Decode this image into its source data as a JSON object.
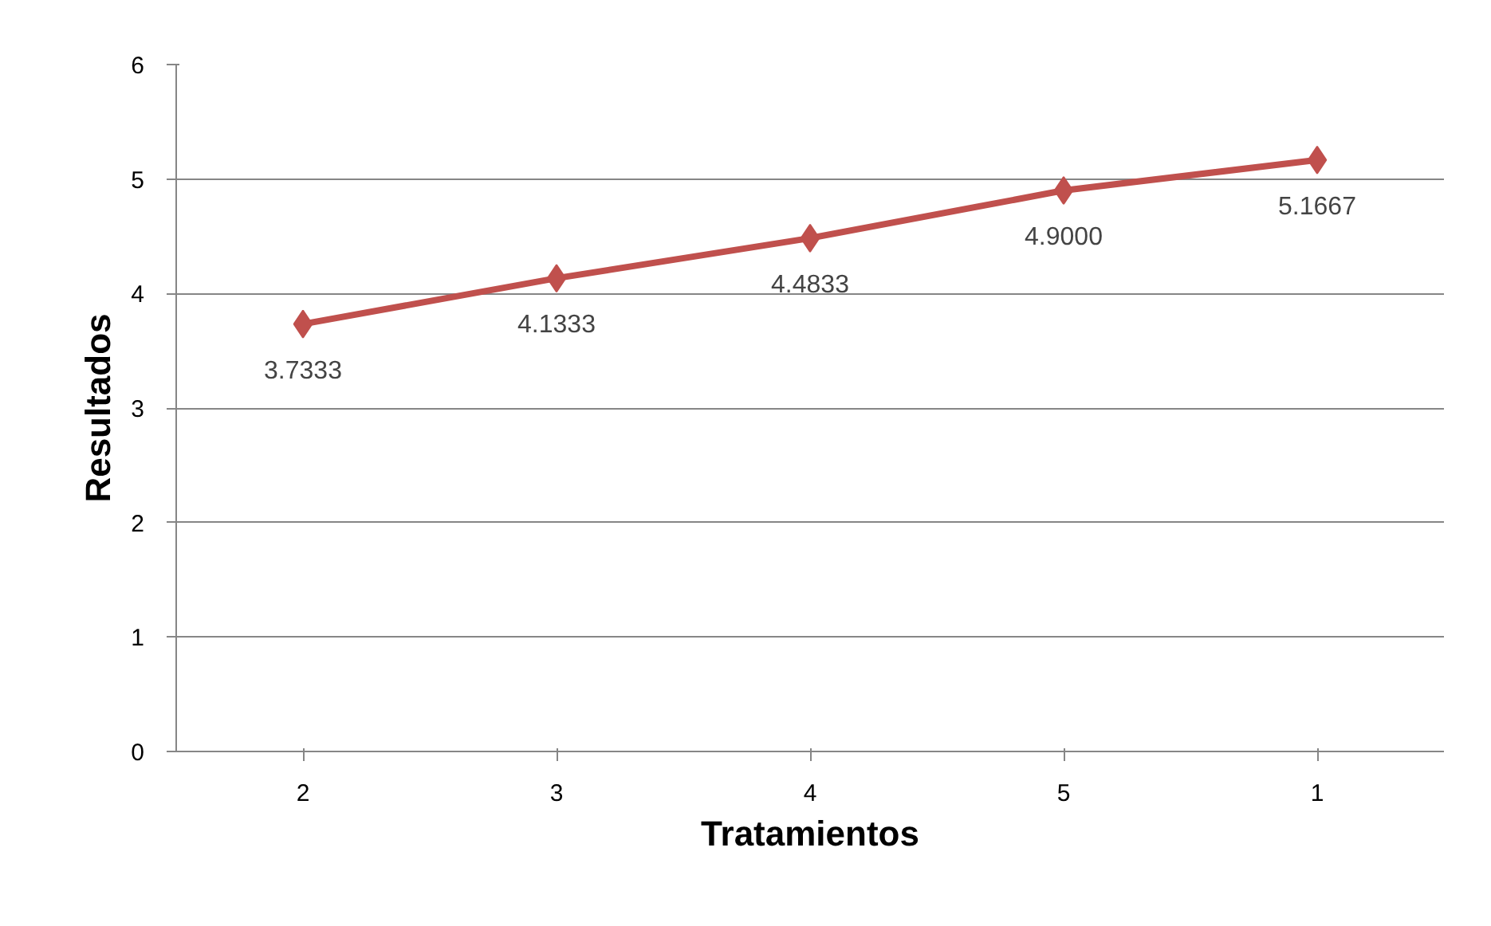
{
  "chart_data": {
    "type": "line",
    "xlabel": "Tratamientos",
    "ylabel": "Resultados",
    "categories": [
      "2",
      "3",
      "4",
      "5",
      "1"
    ],
    "series": [
      {
        "color": "#c0504d",
        "values": [
          3.7333,
          4.1333,
          4.4833,
          4.9,
          5.1667
        ],
        "value_labels": [
          "3.7333",
          "4.1333",
          "4.4833",
          "4.9000",
          "5.1667"
        ]
      }
    ],
    "ylim": [
      0,
      6
    ],
    "yticks": [
      0,
      1,
      2,
      3,
      4,
      5,
      6
    ],
    "grid": "y",
    "marker": "diamond",
    "line_style": "solid"
  }
}
